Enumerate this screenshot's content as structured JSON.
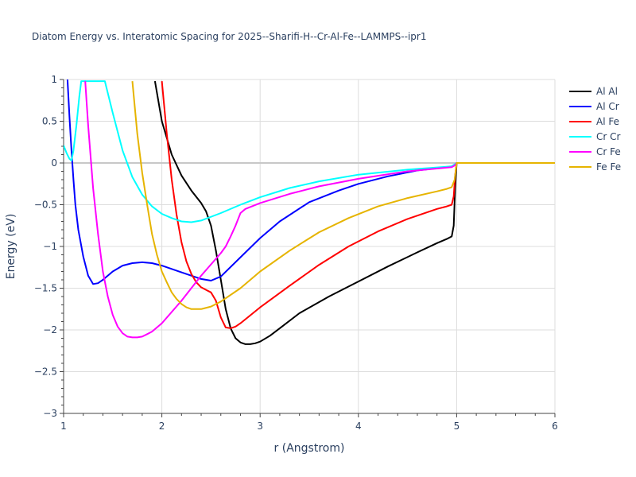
{
  "chart_data": {
    "type": "line",
    "title": "Diatom Energy vs. Interatomic Spacing for 2025--Sharifi-H--Cr-Al-Fe--LAMMPS--ipr1",
    "xlabel": "r (Angstrom)",
    "ylabel": "Energy (eV)",
    "xlim": [
      1,
      6
    ],
    "ylim": [
      -3,
      1
    ],
    "xticks": [
      1,
      2,
      3,
      4,
      5,
      6
    ],
    "xtick_labels": [
      "1",
      "2",
      "3",
      "4",
      "5",
      "6"
    ],
    "yticks": [
      1,
      0.5,
      0,
      -0.5,
      -1,
      -1.5,
      -2,
      -2.5,
      -3
    ],
    "ytick_labels": [
      "1",
      "0.5",
      "0",
      "−0.5",
      "−1",
      "−1.5",
      "−2",
      "−2.5",
      "−3"
    ],
    "grid": true,
    "legend_position": "top-right",
    "series": [
      {
        "name": "Al Al",
        "color": "#000000",
        "x": [
          1.93,
          2.0,
          2.1,
          2.2,
          2.3,
          2.4,
          2.45,
          2.5,
          2.55,
          2.6,
          2.65,
          2.7,
          2.75,
          2.8,
          2.85,
          2.9,
          2.95,
          3.0,
          3.1,
          3.2,
          3.4,
          3.7,
          4.0,
          4.3,
          4.6,
          4.8,
          4.9,
          4.95,
          4.97,
          4.985,
          5.0,
          5.5,
          6.0
        ],
        "y": [
          0.98,
          0.5,
          0.1,
          -0.15,
          -0.33,
          -0.48,
          -0.58,
          -0.75,
          -1.05,
          -1.4,
          -1.75,
          -1.98,
          -2.1,
          -2.15,
          -2.17,
          -2.17,
          -2.16,
          -2.14,
          -2.07,
          -1.98,
          -1.8,
          -1.6,
          -1.42,
          -1.24,
          -1.07,
          -0.96,
          -0.91,
          -0.88,
          -0.75,
          -0.3,
          0.0,
          0.0,
          0.0
        ]
      },
      {
        "name": "Al Cr",
        "color": "#0000ff",
        "x": [
          1.04,
          1.06,
          1.08,
          1.1,
          1.12,
          1.15,
          1.2,
          1.25,
          1.3,
          1.35,
          1.4,
          1.5,
          1.6,
          1.7,
          1.8,
          1.9,
          2.0,
          2.2,
          2.4,
          2.5,
          2.6,
          2.8,
          3.0,
          3.2,
          3.5,
          3.8,
          4.0,
          4.3,
          4.6,
          4.9,
          4.95,
          4.98,
          5.0,
          5.5,
          6.0
        ],
        "y": [
          1.0,
          0.55,
          0.15,
          -0.2,
          -0.5,
          -0.8,
          -1.12,
          -1.35,
          -1.45,
          -1.44,
          -1.4,
          -1.3,
          -1.23,
          -1.2,
          -1.19,
          -1.2,
          -1.23,
          -1.31,
          -1.39,
          -1.41,
          -1.36,
          -1.13,
          -0.9,
          -0.7,
          -0.47,
          -0.33,
          -0.25,
          -0.16,
          -0.09,
          -0.05,
          -0.04,
          -0.02,
          0.0,
          0.0,
          0.0
        ]
      },
      {
        "name": "Al Fe",
        "color": "#ff0000",
        "x": [
          2.0,
          2.05,
          2.1,
          2.15,
          2.2,
          2.25,
          2.3,
          2.35,
          2.4,
          2.45,
          2.5,
          2.55,
          2.6,
          2.65,
          2.7,
          2.75,
          2.8,
          3.0,
          3.3,
          3.6,
          3.9,
          4.2,
          4.5,
          4.8,
          4.9,
          4.95,
          4.97,
          4.985,
          5.0,
          5.5,
          6.0
        ],
        "y": [
          0.98,
          0.35,
          -0.2,
          -0.62,
          -0.95,
          -1.18,
          -1.33,
          -1.43,
          -1.49,
          -1.52,
          -1.55,
          -1.65,
          -1.85,
          -1.97,
          -1.98,
          -1.96,
          -1.92,
          -1.73,
          -1.47,
          -1.22,
          -1.0,
          -0.82,
          -0.67,
          -0.55,
          -0.52,
          -0.5,
          -0.4,
          -0.15,
          0.0,
          0.0,
          0.0
        ]
      },
      {
        "name": "Cr Cr",
        "color": "#00ffff",
        "x": [
          1.0,
          1.03,
          1.06,
          1.08,
          1.1,
          1.13,
          1.16,
          1.18,
          1.42,
          1.5,
          1.6,
          1.7,
          1.8,
          1.9,
          2.0,
          2.1,
          2.2,
          2.3,
          2.4,
          2.6,
          2.8,
          3.0,
          3.3,
          3.6,
          4.0,
          4.5,
          4.95,
          5.0,
          5.5,
          6.0
        ],
        "y": [
          0.21,
          0.12,
          0.05,
          0.03,
          0.15,
          0.45,
          0.8,
          0.98,
          0.98,
          0.6,
          0.15,
          -0.17,
          -0.38,
          -0.52,
          -0.61,
          -0.66,
          -0.7,
          -0.71,
          -0.69,
          -0.6,
          -0.5,
          -0.41,
          -0.3,
          -0.22,
          -0.14,
          -0.08,
          -0.04,
          0.0,
          0.0,
          0.0
        ]
      },
      {
        "name": "Cr Fe",
        "color": "#ff00ff",
        "x": [
          1.22,
          1.25,
          1.3,
          1.35,
          1.4,
          1.45,
          1.5,
          1.55,
          1.6,
          1.65,
          1.7,
          1.75,
          1.8,
          1.85,
          1.9,
          2.0,
          2.2,
          2.4,
          2.6,
          2.65,
          2.7,
          2.75,
          2.8,
          2.85,
          3.0,
          3.3,
          3.6,
          4.0,
          4.5,
          4.95,
          4.98,
          5.0,
          5.5,
          6.0
        ],
        "y": [
          0.98,
          0.45,
          -0.3,
          -0.85,
          -1.3,
          -1.6,
          -1.82,
          -1.96,
          -2.04,
          -2.08,
          -2.09,
          -2.09,
          -2.08,
          -2.05,
          -2.02,
          -1.92,
          -1.65,
          -1.35,
          -1.08,
          -1.0,
          -0.88,
          -0.75,
          -0.6,
          -0.55,
          -0.48,
          -0.37,
          -0.28,
          -0.19,
          -0.1,
          -0.05,
          -0.03,
          0.0,
          0.0,
          0.0
        ]
      },
      {
        "name": "Fe Fe",
        "color": "#e6b400",
        "x": [
          1.7,
          1.75,
          1.8,
          1.85,
          1.9,
          1.95,
          2.0,
          2.05,
          2.1,
          2.15,
          2.2,
          2.25,
          2.3,
          2.35,
          2.4,
          2.5,
          2.6,
          2.8,
          3.0,
          3.3,
          3.6,
          3.9,
          4.2,
          4.5,
          4.8,
          4.9,
          4.95,
          4.98,
          5.0,
          5.5,
          6.0
        ],
        "y": [
          0.98,
          0.35,
          -0.12,
          -0.5,
          -0.85,
          -1.1,
          -1.3,
          -1.43,
          -1.55,
          -1.63,
          -1.69,
          -1.73,
          -1.75,
          -1.75,
          -1.75,
          -1.72,
          -1.66,
          -1.5,
          -1.3,
          -1.05,
          -0.83,
          -0.66,
          -0.52,
          -0.42,
          -0.34,
          -0.31,
          -0.29,
          -0.2,
          0.0,
          0.0,
          0.0
        ]
      }
    ]
  }
}
